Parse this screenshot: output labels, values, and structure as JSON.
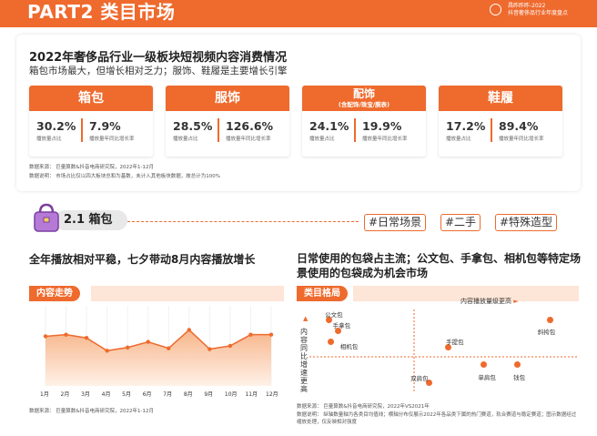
{
  "header": {
    "title": "PART2 类目市场",
    "brand_line1": "昌昨昨昨-2022",
    "brand_line2": "抖音奢侈品行业年度盘点"
  },
  "overview": {
    "title": "2022年奢侈品行业一级板块短视频内容消费情况",
    "subtitle": "箱包市场最大，但增长相对乏力；服饰、鞋履是主要增长引擎",
    "categories": [
      {
        "name": "箱包",
        "note": "",
        "share": "30.2%",
        "share_label": "播放量占比",
        "growth": "7.9%",
        "growth_label": "播放量年同比增长率"
      },
      {
        "name": "服饰",
        "note": "",
        "share": "28.5%",
        "share_label": "播放量占比",
        "growth": "126.6%",
        "growth_label": "播放量年同比增长率"
      },
      {
        "name": "配饰",
        "note": "(含配饰/珠宝/腕表)",
        "share": "24.1%",
        "share_label": "播放量占比",
        "growth": "19.9%",
        "growth_label": "播放量年同比增长率"
      },
      {
        "name": "鞋履",
        "note": "",
        "share": "17.2%",
        "share_label": "播放量占比",
        "growth": "89.4%",
        "growth_label": "播放量年同比增长率"
      }
    ],
    "source": "数据来源： 巨量算数&抖音电商研究院，2022年1-12月",
    "note": "数据说明： 市场占比仅以四大板块总和为基数，未计入其他板块数据，故总计为100%"
  },
  "section": {
    "title": "2.1 箱包",
    "tags": [
      "#日常场景",
      "#二手",
      "#特殊造型"
    ]
  },
  "left": {
    "heading": "全年播放相对平稳，七夕带动8月内容播放增长",
    "box_label": "内容走势",
    "months": [
      "1月",
      "2月",
      "3月",
      "4月",
      "5月",
      "6月",
      "7月",
      "8月",
      "9月",
      "10月",
      "11月",
      "12月"
    ],
    "source": "数据来源： 巨量算数&抖音电商研究院，2022年1-12月"
  },
  "right": {
    "heading": "日常使用的包袋占主流；公文包、手拿包、相机包等特定场景使用的包袋成为机会市场",
    "box_label": "类目格局",
    "x_axis_label": "内容播放量级更高",
    "y_axis_label": "内容同比增速更高",
    "bags": [
      "公文包",
      "手拿包",
      "相机包",
      "斜挎包",
      "手提包",
      "单肩包",
      "钱包",
      "双肩包"
    ],
    "source": "数据来源： 巨量算数&抖音电商研究院，2022年VS2021年",
    "note": "数据说明： 纵轴数量轴为各类目均值线；横轴分布仅展示2022年各品类下属的热门赛道，轨合赛道与稳定赛道；图示数据经过缩放处理，仅反映相对强度"
  },
  "chart_data": {
    "type": "area",
    "title": "内容走势",
    "categories": [
      "1月",
      "2月",
      "3月",
      "4月",
      "5月",
      "6月",
      "7月",
      "8月",
      "9月",
      "10月",
      "11月",
      "12月"
    ],
    "values": [
      62,
      64,
      60,
      44,
      48,
      55,
      47,
      70,
      46,
      50,
      64,
      64
    ],
    "ylim": [
      0,
      100
    ],
    "colors": {
      "line": "#ef6a2d",
      "fill_top": "#f7b58a",
      "fill_bottom": "#fff1e8"
    }
  },
  "scatter_data": {
    "type": "scatter",
    "points": [
      {
        "name": "公文包",
        "x": 0.05,
        "y": 0.93
      },
      {
        "name": "手拿包",
        "x": 0.09,
        "y": 0.78
      },
      {
        "name": "相机包",
        "x": 0.06,
        "y": 0.62
      },
      {
        "name": "斜挎包",
        "x": 0.98,
        "y": 0.93
      },
      {
        "name": "手提包",
        "x": 0.55,
        "y": 0.55
      },
      {
        "name": "单肩包",
        "x": 0.7,
        "y": 0.3
      },
      {
        "name": "钱包",
        "x": 0.84,
        "y": 0.3
      },
      {
        "name": "双肩包",
        "x": 0.47,
        "y": 0.05
      }
    ]
  }
}
